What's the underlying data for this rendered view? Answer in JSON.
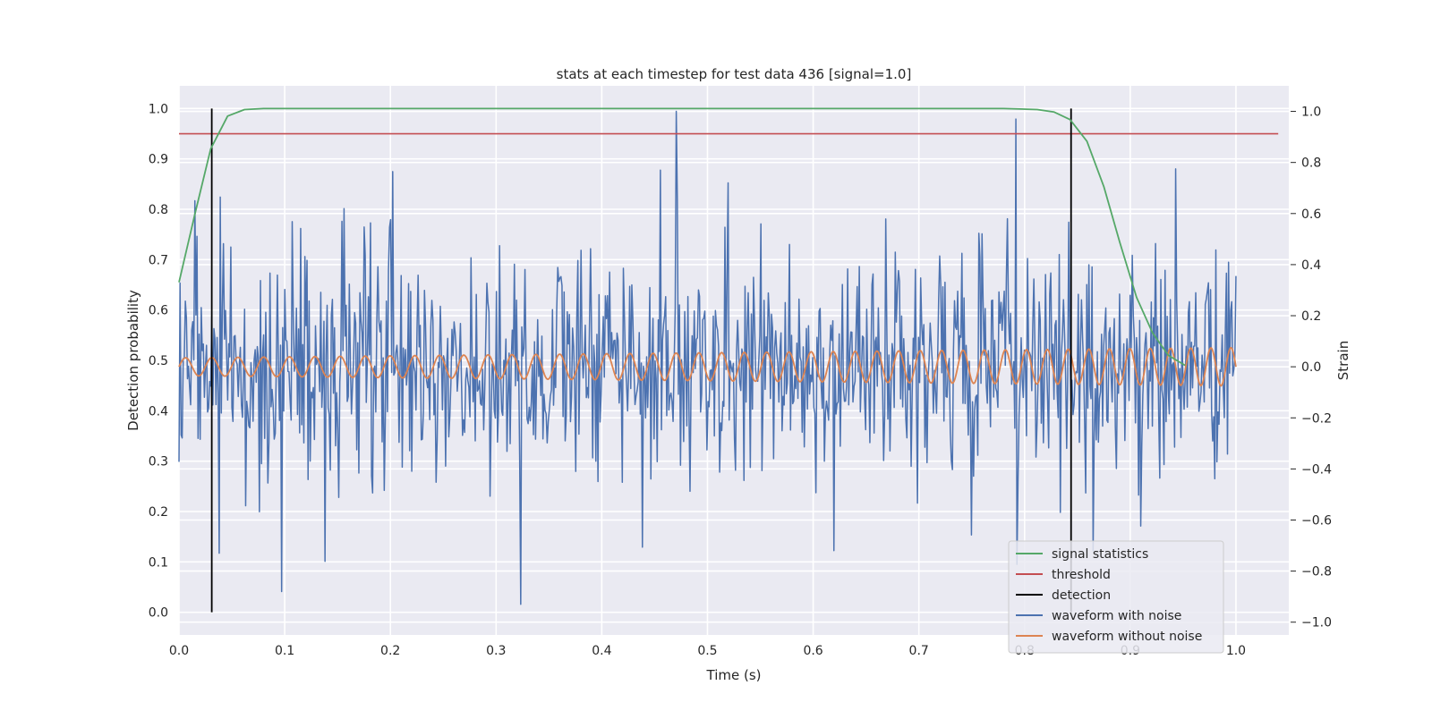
{
  "chart_data": {
    "type": "line",
    "title": "stats at each timestep for test data 436 [signal=1.0]",
    "xlabel": "Time (s)",
    "ylabel_left": "Detection probability",
    "ylabel_right": "Strain",
    "xlim": [
      0.0,
      1.05
    ],
    "ylim_left": [
      -0.045,
      1.045
    ],
    "ylim_right": [
      -1.05,
      1.1
    ],
    "x_ticks": [
      "0.0",
      "0.1",
      "0.2",
      "0.3",
      "0.4",
      "0.5",
      "0.6",
      "0.7",
      "0.8",
      "0.9",
      "1.0"
    ],
    "y_ticks_left": [
      "0.0",
      "0.1",
      "0.2",
      "0.3",
      "0.4",
      "0.5",
      "0.6",
      "0.7",
      "0.8",
      "0.9",
      "1.0"
    ],
    "y_ticks_right": [
      "−1.0",
      "−0.8",
      "−0.6",
      "−0.4",
      "−0.2",
      "0.0",
      "0.2",
      "0.4",
      "0.6",
      "0.8",
      "1.0"
    ],
    "grid": true,
    "legend_position": "lower-right",
    "legend": [
      {
        "name": "signal statistics",
        "color": "#55a868"
      },
      {
        "name": "threshold",
        "color": "#c44e52"
      },
      {
        "name": "detection",
        "color": "#000000"
      },
      {
        "name": "waveform with noise",
        "color": "#4c72b0"
      },
      {
        "name": "waveform without noise",
        "color": "#dd8452"
      }
    ],
    "signal_statistics": {
      "axis": "left",
      "x": [
        0.0,
        0.015,
        0.03,
        0.046,
        0.062,
        0.08,
        0.1,
        0.2,
        0.3,
        0.4,
        0.5,
        0.6,
        0.7,
        0.78,
        0.812,
        0.828,
        0.843,
        0.859,
        0.875,
        0.89,
        0.906,
        0.921,
        0.936,
        0.952
      ],
      "y": [
        0.655,
        0.79,
        0.92,
        0.985,
        0.998,
        1.0,
        1.0,
        1.0,
        1.0,
        1.0,
        1.0,
        1.0,
        1.0,
        1.0,
        0.998,
        0.993,
        0.978,
        0.935,
        0.845,
        0.735,
        0.625,
        0.555,
        0.51,
        0.49
      ]
    },
    "threshold": {
      "axis": "left",
      "value": 0.95,
      "x_range": [
        0.0,
        1.04
      ]
    },
    "detections": [
      {
        "x": 0.031,
        "y_range": [
          0.0,
          1.0
        ]
      },
      {
        "x": 0.844,
        "y_range": [
          0.0,
          1.0
        ]
      }
    ],
    "waveform_without_noise": {
      "axis": "right",
      "x_range": [
        0.0,
        1.0
      ],
      "amplitude_start": 0.035,
      "amplitude_end": 0.075,
      "frequency_start_hz": 40,
      "frequency_end_hz": 53
    },
    "waveform_with_noise": {
      "axis": "right",
      "x_range": [
        0.0,
        1.0
      ],
      "num_points": 1000,
      "noise_std": 0.22,
      "notable_points": [
        {
          "x": 0.47,
          "y": 1.0
        },
        {
          "x": 0.792,
          "y": 0.97
        },
        {
          "x": 0.455,
          "y": 0.77
        },
        {
          "x": 0.52,
          "y": 0.72
        },
        {
          "x": 0.323,
          "y": -0.93
        },
        {
          "x": 0.097,
          "y": -0.88
        },
        {
          "x": 0.62,
          "y": -0.72
        },
        {
          "x": 0.038,
          "y": -0.73
        },
        {
          "x": 0.865,
          "y": -0.72
        },
        {
          "x": 0.015,
          "y": 0.65
        }
      ]
    }
  }
}
